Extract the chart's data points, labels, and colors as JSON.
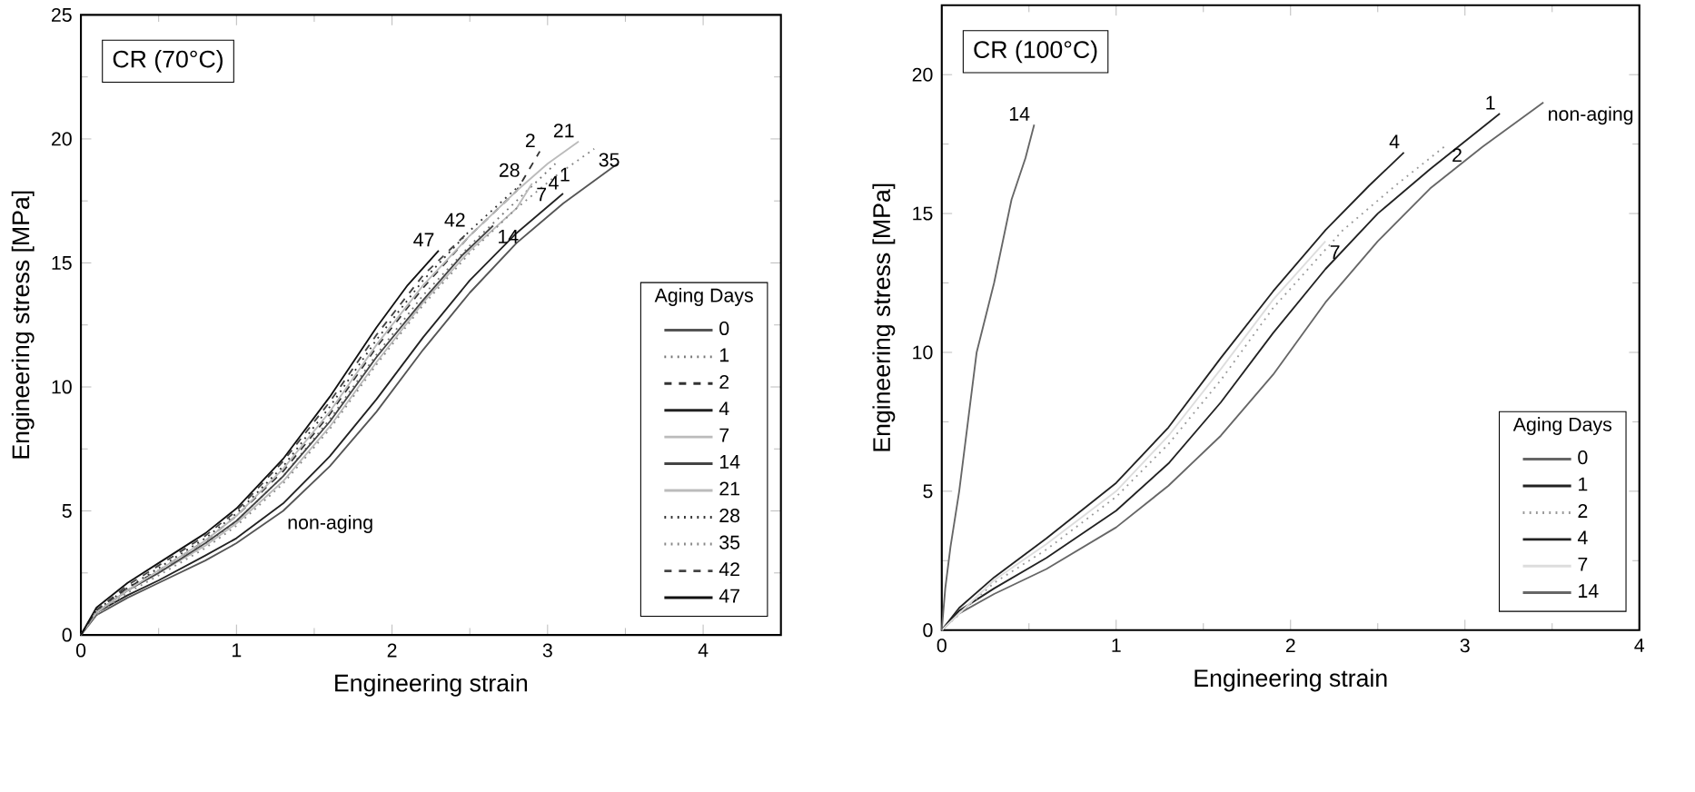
{
  "chart_data": [
    {
      "type": "line",
      "title": "CR (70°C)",
      "xlabel": "Engineering strain",
      "ylabel": "Engineering stress [MPa]",
      "legend_title": "Aging Days",
      "xlim": [
        0,
        4.5
      ],
      "ylim": [
        0,
        25
      ],
      "xticks": [
        0,
        1,
        2,
        3,
        4
      ],
      "yticks": [
        0,
        5,
        10,
        15,
        20,
        25
      ],
      "legend": "bottom right",
      "grid": false,
      "series": [
        {
          "name": "0",
          "color": "#555555",
          "line_style": "solid",
          "x": [
            0,
            0.1,
            0.3,
            0.5,
            0.8,
            1.0,
            1.3,
            1.6,
            1.9,
            2.2,
            2.5,
            2.8,
            3.1,
            3.45
          ],
          "values": [
            0,
            0.8,
            1.5,
            2.1,
            3.0,
            3.7,
            5.0,
            6.8,
            9.0,
            11.5,
            13.8,
            15.8,
            17.4,
            19.0
          ]
        },
        {
          "name": "1",
          "color": "#777777",
          "line_style": "dotted",
          "x": [
            0,
            0.1,
            0.3,
            0.5,
            0.8,
            1.0,
            1.3,
            1.6,
            1.9,
            2.2,
            2.5,
            2.8,
            3.05
          ],
          "values": [
            0,
            0.9,
            1.8,
            2.5,
            3.6,
            4.6,
            6.4,
            8.7,
            11.3,
            13.7,
            15.7,
            17.5,
            19.0
          ]
        },
        {
          "name": "2",
          "color": "#333333",
          "line_style": "dashed",
          "x": [
            0,
            0.1,
            0.3,
            0.5,
            0.8,
            1.0,
            1.3,
            1.6,
            1.9,
            2.2,
            2.5,
            2.8,
            2.95
          ],
          "values": [
            0,
            1.0,
            1.9,
            2.6,
            3.8,
            4.8,
            6.6,
            8.9,
            11.6,
            14.0,
            16.1,
            17.9,
            19.5
          ]
        },
        {
          "name": "4",
          "color": "#222222",
          "line_style": "solid",
          "x": [
            0,
            0.1,
            0.3,
            0.5,
            0.8,
            1.0,
            1.3,
            1.6,
            1.9,
            2.2,
            2.5,
            2.8,
            3.1
          ],
          "values": [
            0,
            0.9,
            1.6,
            2.2,
            3.2,
            3.9,
            5.3,
            7.2,
            9.5,
            12.0,
            14.3,
            16.2,
            17.8
          ]
        },
        {
          "name": "7",
          "color": "#bbbbbb",
          "line_style": "solid",
          "x": [
            0,
            0.1,
            0.3,
            0.5,
            0.8,
            1.0,
            1.3,
            1.6,
            1.9,
            2.2,
            2.5,
            2.8,
            2.9
          ],
          "values": [
            0,
            0.9,
            1.8,
            2.5,
            3.6,
            4.5,
            6.2,
            8.4,
            11.0,
            13.4,
            15.5,
            17.2,
            18.2
          ]
        },
        {
          "name": "14",
          "color": "#444444",
          "line_style": "solid",
          "x": [
            0,
            0.1,
            0.3,
            0.5,
            0.8,
            1.0,
            1.3,
            1.6,
            1.9,
            2.2,
            2.45,
            2.65
          ],
          "values": [
            0,
            0.9,
            1.8,
            2.5,
            3.7,
            4.6,
            6.4,
            8.6,
            11.2,
            13.5,
            15.3,
            16.5
          ]
        },
        {
          "name": "21",
          "color": "#bbbbbb",
          "line_style": "solid",
          "x": [
            0,
            0.1,
            0.3,
            0.5,
            0.8,
            1.0,
            1.3,
            1.6,
            1.9,
            2.2,
            2.5,
            2.8,
            3.0,
            3.2
          ],
          "values": [
            0,
            0.9,
            1.8,
            2.6,
            3.8,
            4.8,
            6.7,
            9.0,
            11.7,
            14.1,
            16.1,
            17.9,
            19.0,
            19.9
          ]
        },
        {
          "name": "28",
          "color": "#333333",
          "line_style": "dotted",
          "x": [
            0,
            0.1,
            0.3,
            0.5,
            0.8,
            1.0,
            1.3,
            1.6,
            1.9,
            2.2,
            2.5,
            2.85
          ],
          "values": [
            0,
            1.0,
            1.9,
            2.7,
            3.9,
            4.9,
            6.8,
            9.2,
            11.9,
            14.3,
            16.3,
            18.3
          ]
        },
        {
          "name": "35",
          "color": "#888888",
          "line_style": "dotted",
          "x": [
            0,
            0.1,
            0.3,
            0.5,
            0.8,
            1.0,
            1.3,
            1.6,
            1.9,
            2.2,
            2.5,
            2.8,
            3.05,
            3.3
          ],
          "values": [
            0,
            0.8,
            1.7,
            2.4,
            3.5,
            4.4,
            6.1,
            8.3,
            10.9,
            13.3,
            15.4,
            17.2,
            18.5,
            19.6
          ]
        },
        {
          "name": "42",
          "color": "#444444",
          "line_style": "dashed",
          "x": [
            0,
            0.1,
            0.3,
            0.5,
            0.8,
            1.0,
            1.3,
            1.6,
            1.9,
            2.2,
            2.5
          ],
          "values": [
            0,
            1.0,
            2.0,
            2.8,
            4.0,
            5.0,
            7.0,
            9.4,
            12.1,
            14.5,
            16.3
          ]
        },
        {
          "name": "47",
          "color": "#111111",
          "line_style": "solid",
          "x": [
            0,
            0.1,
            0.3,
            0.5,
            0.8,
            1.0,
            1.3,
            1.6,
            1.9,
            2.1,
            2.3
          ],
          "values": [
            0,
            1.1,
            2.1,
            2.9,
            4.1,
            5.1,
            7.1,
            9.6,
            12.4,
            14.1,
            15.5
          ]
        }
      ],
      "annotations": [
        {
          "text": "42",
          "x": 2.5,
          "y": 16.3
        },
        {
          "text": "14",
          "x": 2.65,
          "y": 16.5
        },
        {
          "text": "47",
          "x": 2.3,
          "y": 15.5
        },
        {
          "text": "non-aging",
          "x": 1.3,
          "y": 5.0
        },
        {
          "text": "28",
          "x": 2.85,
          "y": 18.3
        },
        {
          "text": "7",
          "x": 2.9,
          "y": 18.2
        },
        {
          "text": "2",
          "x": 2.95,
          "y": 19.5
        },
        {
          "text": "1",
          "x": 3.05,
          "y": 19.0
        },
        {
          "text": "21",
          "x": 3.2,
          "y": 19.9
        },
        {
          "text": "35",
          "x": 3.3,
          "y": 19.6
        },
        {
          "text": "4",
          "x": 3.1,
          "y": 17.8
        }
      ]
    },
    {
      "type": "line",
      "title": "CR (100°C)",
      "xlabel": "Engineering strain",
      "ylabel": "Engineering stress [MPa]",
      "legend_title": "Aging Days",
      "xlim": [
        0,
        4
      ],
      "ylim": [
        0,
        22.5
      ],
      "xticks": [
        0,
        1,
        2,
        3,
        4
      ],
      "yticks": [
        0,
        5,
        10,
        15,
        20
      ],
      "legend": "bottom right",
      "grid": false,
      "series": [
        {
          "name": "0",
          "color": "#666666",
          "line_style": "solid",
          "x": [
            0,
            0.1,
            0.3,
            0.6,
            1.0,
            1.3,
            1.6,
            1.9,
            2.2,
            2.5,
            2.8,
            3.1,
            3.45
          ],
          "values": [
            0,
            0.6,
            1.3,
            2.2,
            3.7,
            5.2,
            7.0,
            9.2,
            11.8,
            14.0,
            15.9,
            17.4,
            19.0
          ]
        },
        {
          "name": "1",
          "color": "#222222",
          "line_style": "solid",
          "x": [
            0,
            0.1,
            0.3,
            0.6,
            1.0,
            1.3,
            1.6,
            1.9,
            2.2,
            2.5,
            2.8,
            3.2
          ],
          "values": [
            0,
            0.7,
            1.5,
            2.6,
            4.3,
            6.0,
            8.2,
            10.7,
            13.0,
            15.0,
            16.6,
            18.6
          ]
        },
        {
          "name": "2",
          "color": "#999999",
          "line_style": "dotted",
          "x": [
            0,
            0.3,
            0.6,
            1.0,
            1.3,
            1.6,
            1.9,
            2.3,
            2.6,
            2.9
          ],
          "values": [
            0,
            1.7,
            2.9,
            4.8,
            6.7,
            9.0,
            11.6,
            14.4,
            16.0,
            17.5
          ]
        },
        {
          "name": "4",
          "color": "#222222",
          "line_style": "solid",
          "x": [
            0,
            0.1,
            0.3,
            0.6,
            1.0,
            1.3,
            1.6,
            1.9,
            2.2,
            2.45,
            2.65
          ],
          "values": [
            0,
            0.8,
            1.9,
            3.3,
            5.3,
            7.3,
            9.8,
            12.2,
            14.4,
            16.0,
            17.2
          ]
        },
        {
          "name": "7",
          "color": "#dddddd",
          "line_style": "solid",
          "x": [
            0,
            0.3,
            0.6,
            1.0,
            1.3,
            1.6,
            1.9,
            2.2
          ],
          "values": [
            0,
            1.8,
            3.1,
            5.0,
            7.0,
            9.4,
            11.9,
            14.0
          ]
        },
        {
          "name": "14",
          "color": "#666666",
          "line_style": "solid",
          "x": [
            0,
            0.02,
            0.05,
            0.1,
            0.15,
            0.2,
            0.3,
            0.4,
            0.48,
            0.53
          ],
          "values": [
            0,
            1.5,
            3.0,
            5.0,
            7.5,
            10.0,
            12.5,
            15.5,
            17.0,
            18.2
          ]
        }
      ],
      "annotations": [
        {
          "text": "14",
          "x": 0.53,
          "y": 18.2
        },
        {
          "text": "non-aging",
          "x": 3.45,
          "y": 19.0
        },
        {
          "text": "4",
          "x": 2.65,
          "y": 17.2
        },
        {
          "text": "2",
          "x": 2.9,
          "y": 17.5
        },
        {
          "text": "1",
          "x": 3.2,
          "y": 18.6
        },
        {
          "text": "7",
          "x": 2.2,
          "y": 14.0
        }
      ]
    }
  ]
}
